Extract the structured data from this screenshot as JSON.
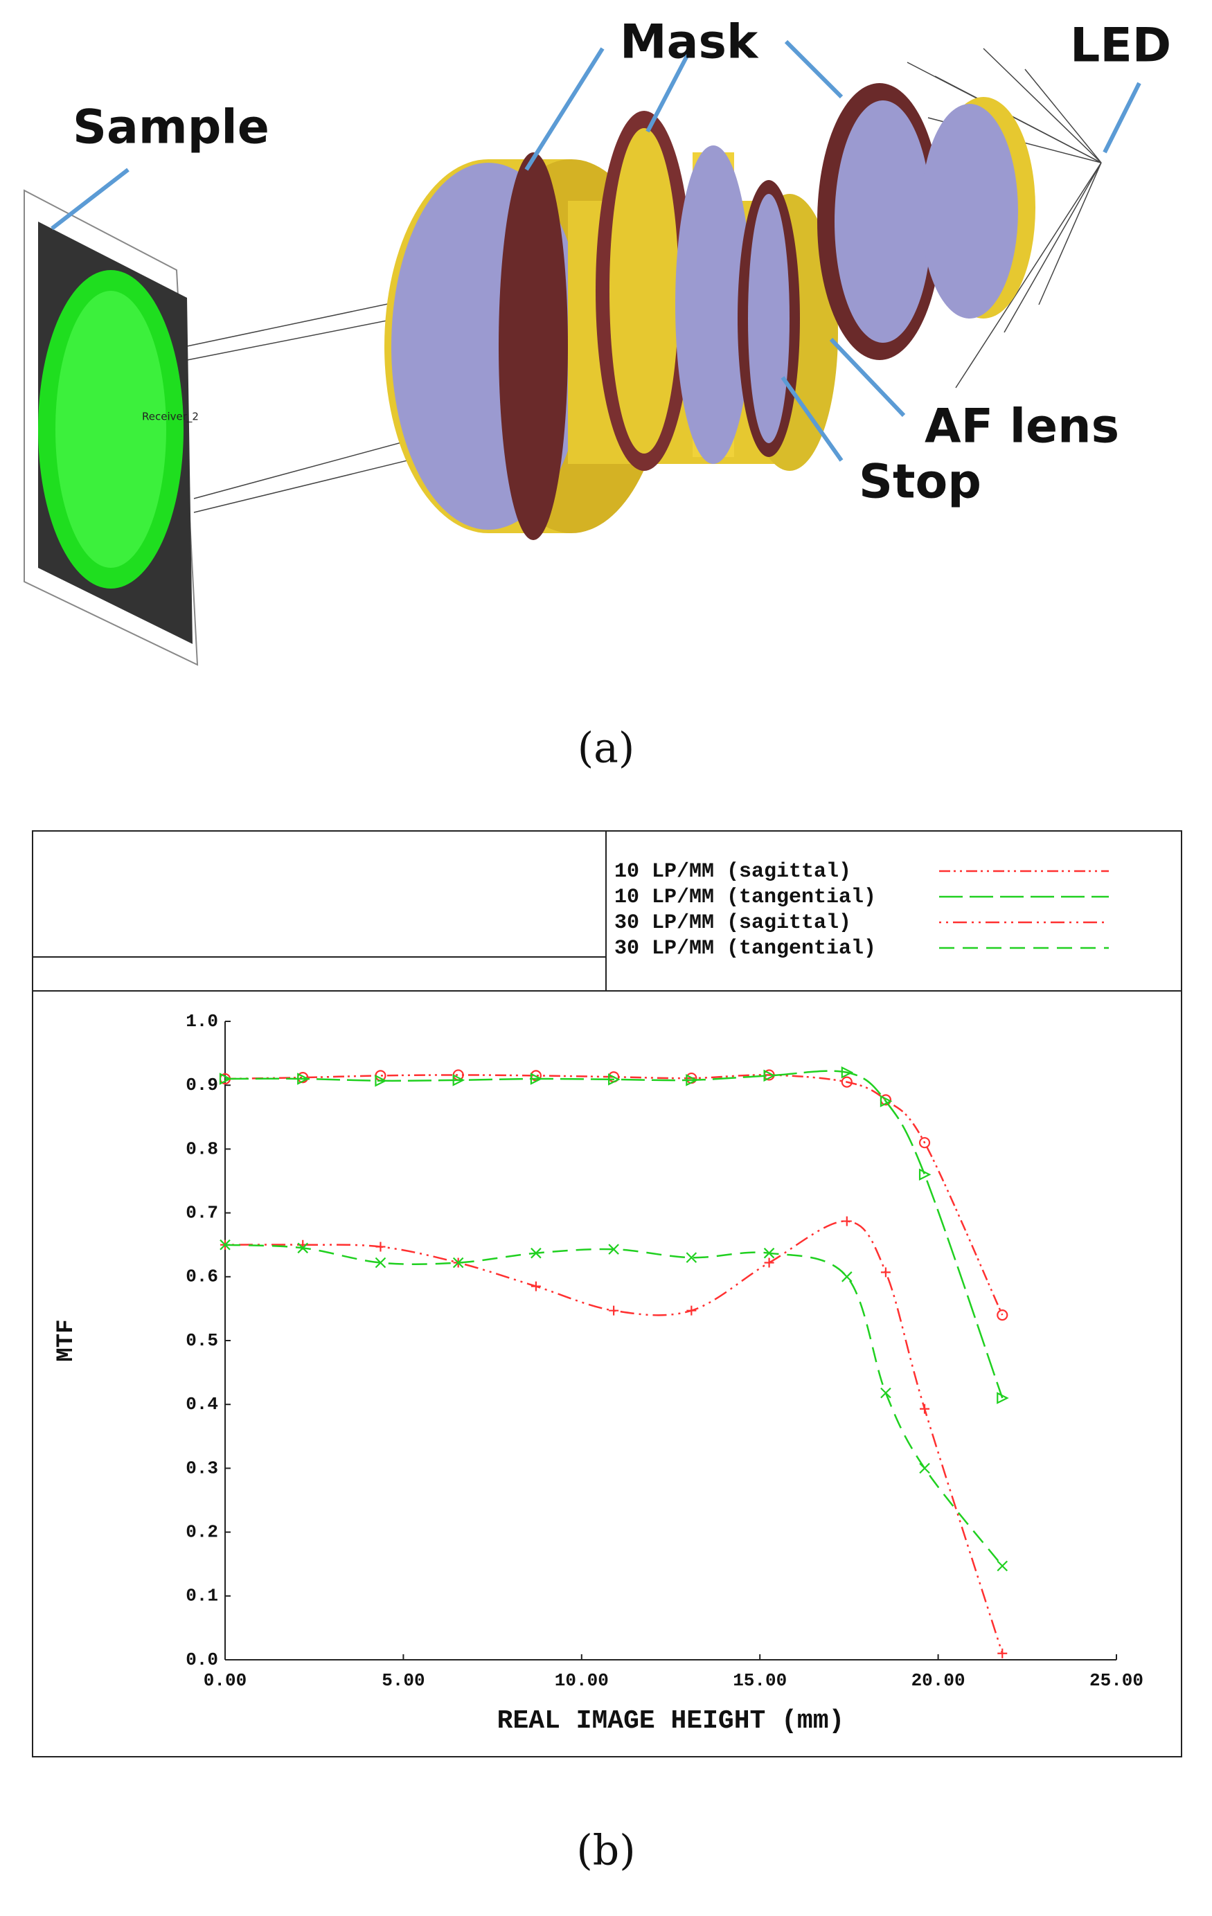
{
  "figure_a": {
    "labels": [
      "Sample",
      "Mask",
      "LED",
      "AF lens",
      "Stop"
    ],
    "render_text": "Receiver_2",
    "caption": "(a)"
  },
  "figure_b_caption": "(b)",
  "chart_data": {
    "type": "line",
    "x_label": "REAL IMAGE HEIGHT (mm)",
    "y_label": "MTF",
    "xlim": [
      0,
      25
    ],
    "ylim": [
      0,
      1
    ],
    "xticks": [
      {
        "value": 0,
        "label": "0.00"
      },
      {
        "value": 5,
        "label": "5.00"
      },
      {
        "value": 10,
        "label": "10.00"
      },
      {
        "value": 15,
        "label": "15.00"
      },
      {
        "value": 20,
        "label": "20.00"
      },
      {
        "value": 25,
        "label": "25.00"
      }
    ],
    "yticks": [
      {
        "value": 0,
        "label": "0.0"
      },
      {
        "value": 0.1,
        "label": "0.1"
      },
      {
        "value": 0.2,
        "label": "0.2"
      },
      {
        "value": 0.3,
        "label": "0.3"
      },
      {
        "value": 0.4,
        "label": "0.4"
      },
      {
        "value": 0.5,
        "label": "0.5"
      },
      {
        "value": 0.6,
        "label": "0.6"
      },
      {
        "value": 0.7,
        "label": "0.7"
      },
      {
        "value": 0.8,
        "label": "0.8"
      },
      {
        "value": 0.9,
        "label": "0.9"
      },
      {
        "value": 1,
        "label": "1.0"
      }
    ],
    "grid": false,
    "x": [
      0,
      2.18,
      4.36,
      6.54,
      8.72,
      10.9,
      13.08,
      15.26,
      17.44,
      18.53,
      19.62,
      21.8
    ],
    "series": [
      {
        "name": "10 LP/MM (sagittal)",
        "color": "#ff3030",
        "values": [
          0.91,
          0.912,
          0.915,
          0.916,
          0.915,
          0.913,
          0.911,
          0.916,
          0.905,
          0.877,
          0.81,
          0.54
        ]
      },
      {
        "name": "10 LP/MM (tangential)",
        "color": "#20d020",
        "values": [
          0.91,
          0.91,
          0.907,
          0.908,
          0.91,
          0.909,
          0.908,
          0.915,
          0.92,
          0.875,
          0.76,
          0.41
        ]
      },
      {
        "name": "30 LP/MM (sagittal)",
        "color": "#ff3030",
        "values": [
          0.65,
          0.65,
          0.647,
          0.622,
          0.585,
          0.547,
          0.547,
          0.622,
          0.687,
          0.607,
          0.393,
          0.01
        ]
      },
      {
        "name": "30 LP/MM (tangential)",
        "color": "#20d020",
        "values": [
          0.65,
          0.645,
          0.622,
          0.622,
          0.637,
          0.643,
          0.63,
          0.637,
          0.6,
          0.418,
          0.3,
          0.147
        ]
      }
    ]
  }
}
